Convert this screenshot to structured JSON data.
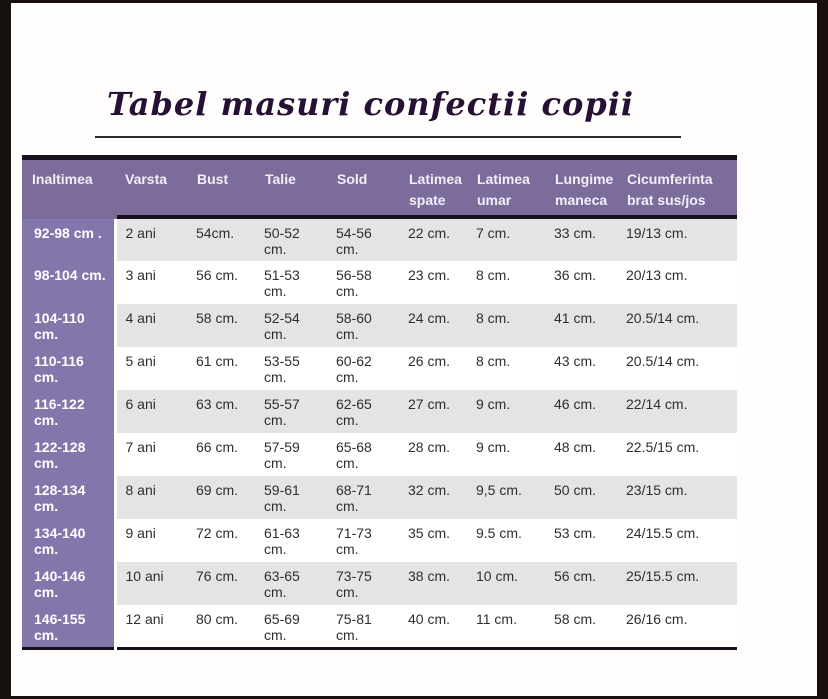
{
  "title": "Tabel masuri confectii copii",
  "table": {
    "headers": [
      {
        "id": "inaltimea",
        "l1": "Inaltimea",
        "l2": ""
      },
      {
        "id": "varsta",
        "l1": "Varsta",
        "l2": ""
      },
      {
        "id": "bust",
        "l1": "Bust",
        "l2": ""
      },
      {
        "id": "talie",
        "l1": "Talie",
        "l2": ""
      },
      {
        "id": "sold",
        "l1": "Sold",
        "l2": ""
      },
      {
        "id": "latimea-spate",
        "l1": "Latimea",
        "l2": "spate"
      },
      {
        "id": "latimea-umar",
        "l1": "Latimea",
        "l2": "umar"
      },
      {
        "id": "lungime-maneca",
        "l1": "Lungime",
        "l2": "maneca"
      },
      {
        "id": "circumferinta-brat",
        "l1": "Cicumferinta",
        "l2": "brat sus/jos"
      }
    ],
    "rows": [
      {
        "cells": [
          "92-98  cm .",
          "2 ani",
          "54cm.",
          "50-52 cm.",
          "54-56 cm.",
          "22 cm.",
          "7 cm.",
          "33 cm.",
          "19/13 cm."
        ]
      },
      {
        "cells": [
          "98-104 cm.",
          "3 ani",
          "56 cm.",
          "51-53 cm.",
          "56-58 cm.",
          "23 cm.",
          "8 cm.",
          "36 cm.",
          "20/13 cm."
        ]
      },
      {
        "cells": [
          "104-110 cm.",
          "4 ani",
          "58 cm.",
          "52-54 cm.",
          "58-60 cm.",
          "24 cm.",
          "8 cm.",
          "41 cm.",
          "20.5/14 cm."
        ]
      },
      {
        "cells": [
          "110-116 cm.",
          "5 ani",
          "61 cm.",
          "53-55 cm.",
          "60-62 cm.",
          "26 cm.",
          "8 cm.",
          "43 cm.",
          "20.5/14 cm."
        ]
      },
      {
        "cells": [
          "116-122 cm.",
          "6 ani",
          "63 cm.",
          "55-57 cm.",
          "62-65 cm.",
          "27 cm.",
          "9 cm.",
          "46 cm.",
          "22/14 cm."
        ]
      },
      {
        "cells": [
          "122-128 cm.",
          "7 ani",
          "66 cm.",
          "57-59 cm.",
          "65-68 cm.",
          "28 cm.",
          "9 cm.",
          "48 cm.",
          "22.5/15 cm."
        ]
      },
      {
        "cells": [
          "128-134 cm.",
          "8 ani",
          "69 cm.",
          "59-61 cm.",
          "68-71 cm.",
          "32 cm.",
          "9,5 cm.",
          "50 cm.",
          "23/15 cm."
        ]
      },
      {
        "cells": [
          "134-140 cm.",
          "9 ani",
          "72 cm.",
          "61-63 cm.",
          "71-73 cm.",
          "35 cm.",
          "9.5 cm.",
          "53 cm.",
          "24/15.5 cm."
        ]
      },
      {
        "cells": [
          "140-146 cm.",
          "10 ani",
          "76 cm.",
          "63-65 cm.",
          "73-75 cm.",
          "38 cm.",
          "10 cm.",
          "56 cm.",
          "25/15.5 cm."
        ]
      },
      {
        "cells": [
          "146-155 cm.",
          "12 ani",
          "80 cm.",
          "65-69 cm.",
          "75-81 cm.",
          "40 cm.",
          "11 cm.",
          "58 cm.",
          "26/16 cm."
        ]
      }
    ]
  },
  "colors": {
    "header_purple": "#7b6c9c",
    "column_purple": "#8476ab",
    "shade_row": "#e4e4e4",
    "frame_black": "#170e0e",
    "title_purple": "#261134"
  }
}
